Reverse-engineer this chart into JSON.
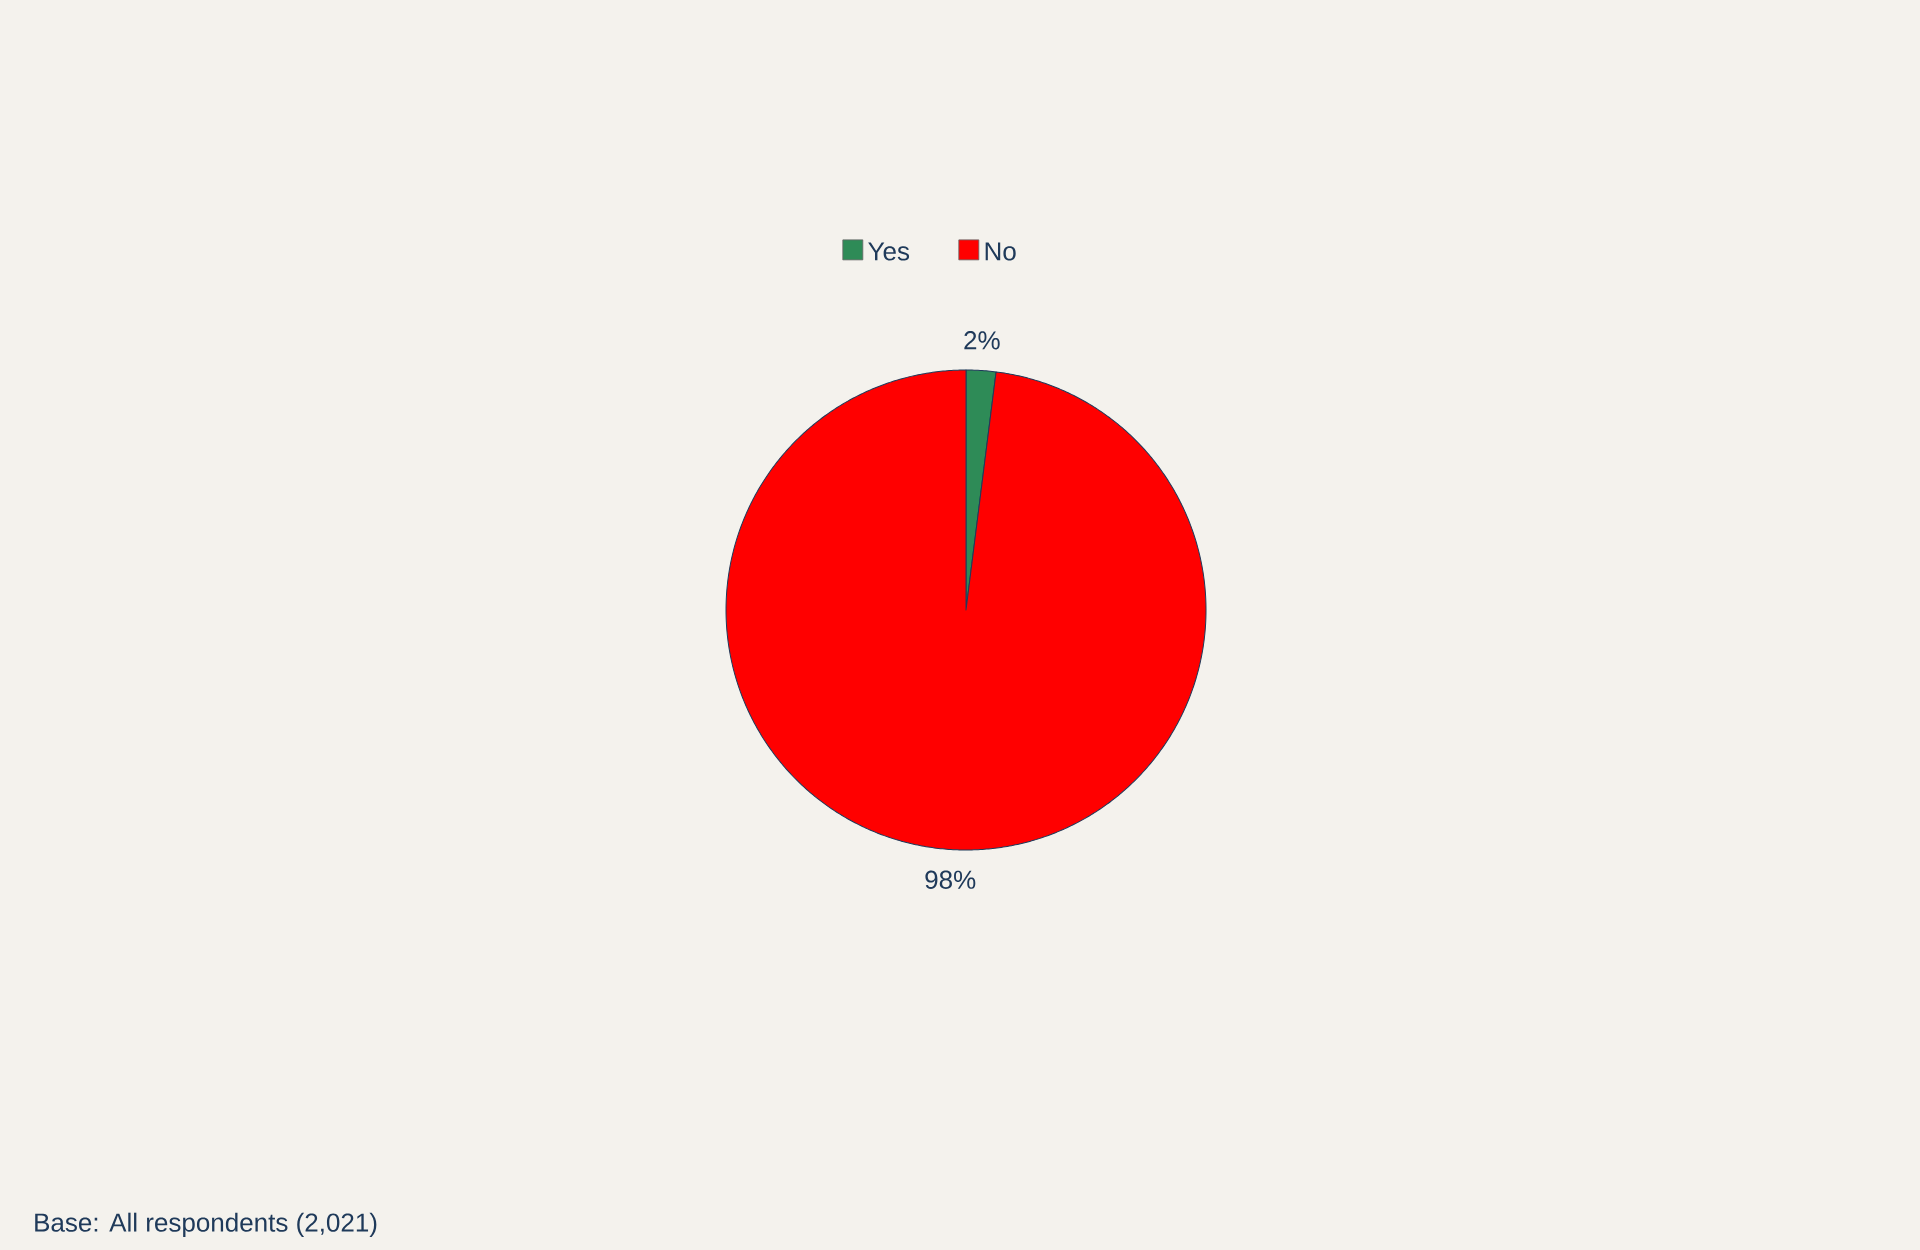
{
  "chart_data": {
    "type": "pie",
    "categories": [
      "Yes",
      "No"
    ],
    "values": [
      2,
      98
    ],
    "colors": [
      "#2e8b57",
      "#ff0000"
    ],
    "value_labels": [
      "2%",
      "98%"
    ],
    "legend": "top",
    "annotations": [
      "Base: All respondents (2,021)"
    ]
  }
}
